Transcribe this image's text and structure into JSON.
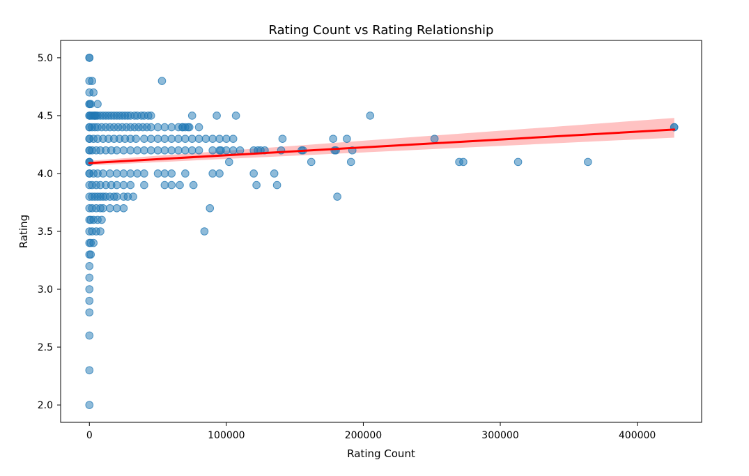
{
  "chart_data": {
    "type": "scatter",
    "title": "Rating Count vs Rating Relationship",
    "xlabel": "Rating Count",
    "ylabel": "Rating",
    "xlim": [
      -21000,
      447000
    ],
    "ylim": [
      1.85,
      5.15
    ],
    "xticks": [
      0,
      100000,
      200000,
      300000,
      400000
    ],
    "xtick_labels": [
      "0",
      "100000",
      "200000",
      "300000",
      "400000"
    ],
    "yticks": [
      2.0,
      2.5,
      3.0,
      3.5,
      4.0,
      4.5,
      5.0
    ],
    "ytick_labels": [
      "2.0",
      "2.5",
      "3.0",
      "3.5",
      "4.0",
      "4.5",
      "5.0"
    ],
    "colors": {
      "points": "#1f77b4",
      "regression_line": "#ff0000",
      "confidence_band": "#ffb3b3",
      "axes": "#000000",
      "background": "#ffffff"
    },
    "regression": {
      "x": [
        0,
        427000
      ],
      "y": [
        4.09,
        4.38
      ],
      "ci_lower": [
        4.07,
        4.31
      ],
      "ci_upper": [
        4.11,
        4.48
      ]
    },
    "series": [
      {
        "name": "points",
        "x": [
          0,
          0,
          0,
          0,
          0,
          0,
          0,
          0,
          0,
          0,
          0,
          0,
          0,
          0,
          0,
          0,
          0,
          0,
          0,
          0,
          0,
          0,
          0,
          0,
          0,
          0,
          0,
          0,
          0,
          0,
          0,
          0,
          1000,
          2000,
          3000,
          4000,
          5000,
          6000,
          8000,
          10000,
          12000,
          14000,
          16000,
          18000,
          20000,
          22000,
          24000,
          26000,
          28000,
          30000,
          33000,
          35000,
          38000,
          40000,
          43000,
          45000,
          2000,
          4000,
          6000,
          9000,
          12000,
          15000,
          18000,
          21000,
          24000,
          27000,
          30000,
          33000,
          36000,
          39000,
          42000,
          45000,
          50000,
          55000,
          60000,
          65000,
          68000,
          70000,
          73000,
          80000,
          3000,
          6000,
          10000,
          14000,
          18000,
          22000,
          26000,
          30000,
          34000,
          40000,
          45000,
          50000,
          55000,
          60000,
          65000,
          70000,
          75000,
          80000,
          85000,
          90000,
          95000,
          100000,
          105000,
          2000,
          5000,
          8000,
          12000,
          16000,
          20000,
          25000,
          30000,
          35000,
          40000,
          45000,
          50000,
          55000,
          60000,
          65000,
          70000,
          75000,
          80000,
          90000,
          95000,
          100000,
          105000,
          110000,
          120000,
          125000,
          128000,
          140000,
          155000,
          180000,
          192000,
          3000,
          6000,
          10000,
          15000,
          20000,
          25000,
          30000,
          35000,
          40000,
          50000,
          55000,
          60000,
          70000,
          90000,
          95000,
          120000,
          135000,
          2000,
          5000,
          8000,
          12000,
          16000,
          20000,
          25000,
          30000,
          40000,
          55000,
          60000,
          2000,
          4000,
          6000,
          8000,
          10000,
          12000,
          15000,
          18000,
          20000,
          25000,
          28000,
          32000,
          2000,
          5000,
          8000,
          10000,
          15000,
          20000,
          25000,
          1000,
          3000,
          6000,
          9000,
          2000,
          5000,
          8000,
          1000,
          3000,
          1000,
          53000,
          75000,
          93000,
          107000,
          205000,
          68000,
          72000,
          141000,
          178000,
          188000,
          252000,
          96000,
          123000,
          156000,
          179000,
          102000,
          162000,
          191000,
          270000,
          273000,
          313000,
          364000,
          66000,
          76000,
          122000,
          137000,
          88000,
          84000,
          181000,
          427000,
          427000,
          0,
          3000,
          0,
          1000,
          4000,
          6000,
          2000
        ],
        "y": [
          5.0,
          5.0,
          4.8,
          4.7,
          4.6,
          4.5,
          4.4,
          4.3,
          4.2,
          4.1,
          4.0,
          3.9,
          3.8,
          3.7,
          3.6,
          3.5,
          3.4,
          3.3,
          3.2,
          3.1,
          3.0,
          2.9,
          2.8,
          2.6,
          2.3,
          2.0,
          4.5,
          4.4,
          4.3,
          4.2,
          4.1,
          4.0,
          4.5,
          4.5,
          4.5,
          4.5,
          4.5,
          4.5,
          4.5,
          4.5,
          4.5,
          4.5,
          4.5,
          4.5,
          4.5,
          4.5,
          4.5,
          4.5,
          4.5,
          4.5,
          4.5,
          4.5,
          4.5,
          4.5,
          4.5,
          4.5,
          4.4,
          4.4,
          4.4,
          4.4,
          4.4,
          4.4,
          4.4,
          4.4,
          4.4,
          4.4,
          4.4,
          4.4,
          4.4,
          4.4,
          4.4,
          4.4,
          4.4,
          4.4,
          4.4,
          4.4,
          4.4,
          4.4,
          4.4,
          4.4,
          4.3,
          4.3,
          4.3,
          4.3,
          4.3,
          4.3,
          4.3,
          4.3,
          4.3,
          4.3,
          4.3,
          4.3,
          4.3,
          4.3,
          4.3,
          4.3,
          4.3,
          4.3,
          4.3,
          4.3,
          4.3,
          4.3,
          4.3,
          4.2,
          4.2,
          4.2,
          4.2,
          4.2,
          4.2,
          4.2,
          4.2,
          4.2,
          4.2,
          4.2,
          4.2,
          4.2,
          4.2,
          4.2,
          4.2,
          4.2,
          4.2,
          4.2,
          4.2,
          4.2,
          4.2,
          4.2,
          4.2,
          4.2,
          4.2,
          4.2,
          4.2,
          4.2,
          4.2,
          4.0,
          4.0,
          4.0,
          4.0,
          4.0,
          4.0,
          4.0,
          4.0,
          4.0,
          4.0,
          4.0,
          4.0,
          4.0,
          4.0,
          4.0,
          4.0,
          4.0,
          3.9,
          3.9,
          3.9,
          3.9,
          3.9,
          3.9,
          3.9,
          3.9,
          3.9,
          3.9,
          3.9,
          3.8,
          3.8,
          3.8,
          3.8,
          3.8,
          3.8,
          3.8,
          3.8,
          3.8,
          3.8,
          3.8,
          3.8,
          3.7,
          3.7,
          3.7,
          3.7,
          3.7,
          3.7,
          3.7,
          3.6,
          3.6,
          3.6,
          3.6,
          3.5,
          3.5,
          3.5,
          3.4,
          3.4,
          3.3,
          4.8,
          4.5,
          4.5,
          4.5,
          4.5,
          4.4,
          4.4,
          4.3,
          4.3,
          4.3,
          4.3,
          4.2,
          4.2,
          4.2,
          4.2,
          4.1,
          4.1,
          4.1,
          4.1,
          4.1,
          4.1,
          4.1,
          3.9,
          3.9,
          3.9,
          3.9,
          3.7,
          3.5,
          3.8,
          4.4,
          4.4,
          4.1,
          4.7,
          4.6,
          4.6,
          4.5,
          4.6,
          4.8
        ]
      }
    ]
  }
}
